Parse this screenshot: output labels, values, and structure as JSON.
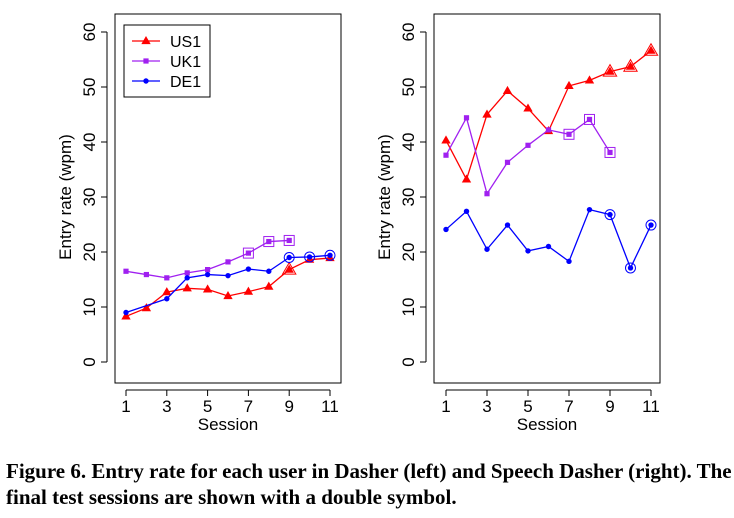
{
  "caption": "Figure 6. Entry rate for each user in Dasher (left) and Speech Dasher (right). The final test sessions are shown with a double symbol.",
  "series_styles": [
    {
      "name": "US1",
      "color": "#ff0000",
      "marker": "triangle"
    },
    {
      "name": "UK1",
      "color": "#a020f0",
      "marker": "square"
    },
    {
      "name": "DE1",
      "color": "#0000ff",
      "marker": "circle"
    }
  ],
  "chart_data": [
    {
      "type": "line",
      "title": "",
      "xlabel": "Session",
      "ylabel": "Entry rate (wpm)",
      "xlim": [
        1,
        11
      ],
      "ylim": [
        0,
        60
      ],
      "xticks": [
        1,
        3,
        5,
        7,
        9,
        11
      ],
      "yticks": [
        0,
        10,
        20,
        30,
        40,
        50,
        60
      ],
      "grid": false,
      "legend": {
        "position": "top-left",
        "entries": [
          "US1",
          "UK1",
          "DE1"
        ]
      },
      "double_symbol_note": "final test sessions",
      "series": [
        {
          "name": "US1",
          "x": [
            1,
            2,
            3,
            4,
            5,
            6,
            7,
            8,
            9,
            10,
            11
          ],
          "values": [
            8.3,
            9.8,
            12.7,
            13.4,
            13.2,
            12.0,
            12.8,
            13.7,
            16.8,
            18.6,
            18.9
          ],
          "double": [
            9
          ]
        },
        {
          "name": "UK1",
          "x": [
            1,
            2,
            3,
            4,
            5,
            6,
            7,
            8,
            9
          ],
          "values": [
            16.5,
            15.9,
            15.3,
            16.2,
            16.8,
            18.2,
            19.8,
            21.9,
            22.1
          ],
          "double": [
            7,
            8,
            9
          ]
        },
        {
          "name": "DE1",
          "x": [
            1,
            3,
            4,
            5,
            6,
            7,
            8,
            9,
            10,
            11
          ],
          "values": [
            9.0,
            11.5,
            15.3,
            15.9,
            15.7,
            16.9,
            16.5,
            19.0,
            19.1,
            19.4
          ],
          "double": [
            9,
            10,
            11
          ]
        }
      ]
    },
    {
      "type": "line",
      "title": "",
      "xlabel": "Session",
      "ylabel": "Entry rate (wpm)",
      "xlim": [
        1,
        11
      ],
      "ylim": [
        0,
        60
      ],
      "xticks": [
        1,
        3,
        5,
        7,
        9,
        11
      ],
      "yticks": [
        0,
        10,
        20,
        30,
        40,
        50,
        60
      ],
      "grid": false,
      "series": [
        {
          "name": "US1",
          "x": [
            1,
            2,
            3,
            4,
            5,
            6,
            7,
            8,
            9,
            10,
            11
          ],
          "values": [
            40.3,
            33.2,
            45.0,
            49.3,
            46.1,
            42.0,
            50.2,
            51.2,
            52.8,
            53.7,
            56.6
          ],
          "double": [
            9,
            10,
            11
          ]
        },
        {
          "name": "UK1",
          "x": [
            1,
            2,
            3,
            4,
            5,
            6,
            7,
            8,
            9
          ],
          "values": [
            37.6,
            44.4,
            30.6,
            36.3,
            39.4,
            42.2,
            41.4,
            44.1,
            38.1
          ],
          "double": [
            7,
            8,
            9
          ]
        },
        {
          "name": "DE1",
          "x": [
            1,
            2,
            3,
            4,
            5,
            6,
            7,
            8,
            9,
            10,
            11
          ],
          "values": [
            24.1,
            27.4,
            20.5,
            24.9,
            20.2,
            21.0,
            18.3,
            27.7,
            26.8,
            17.1,
            24.9
          ],
          "double": [
            9,
            10,
            11
          ]
        }
      ]
    }
  ]
}
